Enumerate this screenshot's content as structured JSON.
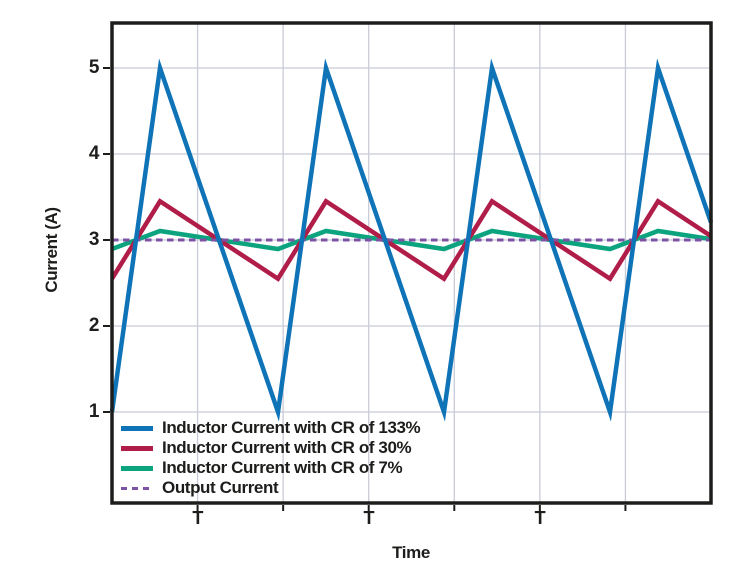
{
  "chart_data": {
    "type": "line",
    "title": "",
    "xlabel": "Time",
    "ylabel": "Current (A)",
    "y_ticks": [
      1,
      2,
      3,
      4,
      5
    ],
    "ylim": [
      0,
      5.5
    ],
    "x_tick_labels": [
      "T",
      "T",
      "T"
    ],
    "x_axis_note": "time axis unlabeled numerically; T marks one switching period",
    "waveform": {
      "shape": "triangle",
      "periods_shown": 3.6,
      "rise_fraction_of_period": 0.29,
      "output_current_mean_A": 3.0
    },
    "series": [
      {
        "name": "Inductor Current with CR of 133%",
        "color": "#0f73b7",
        "style": "solid",
        "mean": 3.0,
        "peak": 5.0,
        "trough": 1.0,
        "ripple_pp": 4.0
      },
      {
        "name": "Inductor Current with CR of 30%",
        "color": "#b01d49",
        "style": "solid",
        "mean": 3.0,
        "peak": 3.45,
        "trough": 2.55,
        "ripple_pp": 0.9
      },
      {
        "name": "Inductor Current with CR of 7%",
        "color": "#0ca47e",
        "style": "solid",
        "mean": 3.0,
        "peak": 3.105,
        "trough": 2.895,
        "ripple_pp": 0.21
      },
      {
        "name": "Output Current",
        "color": "#7c52a5",
        "style": "dashed",
        "mean": 3.0,
        "peak": 3.0,
        "trough": 3.0,
        "ripple_pp": 0.0
      }
    ],
    "style": {
      "grid_color": "#c9cbd8",
      "frame_color": "#1d1d1b",
      "background": "#ffffff",
      "grid": "on",
      "legend_position": "inside bottom-left"
    }
  }
}
